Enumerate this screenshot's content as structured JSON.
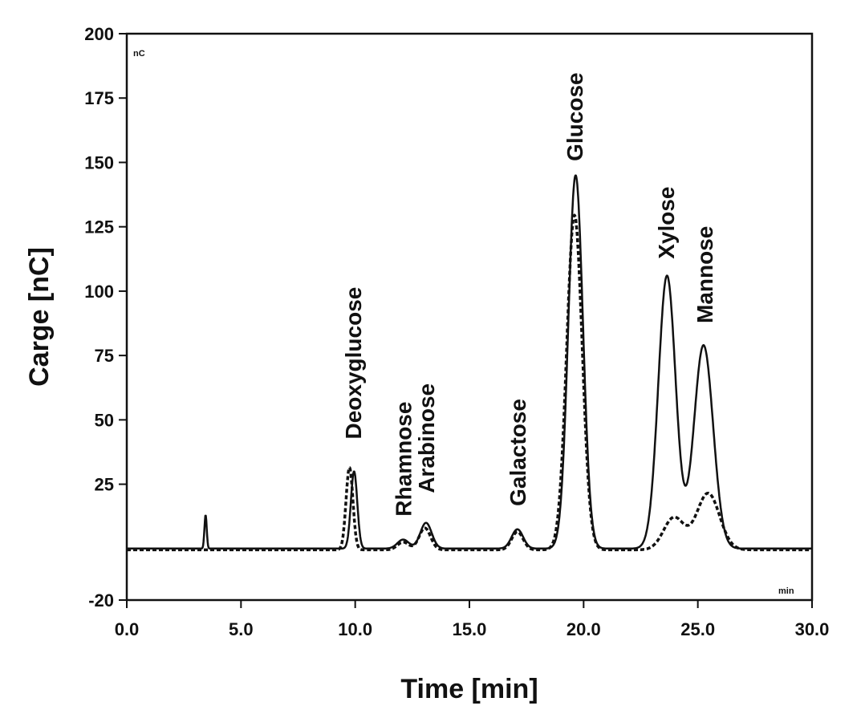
{
  "chart_data": {
    "type": "line",
    "xlabel": "Time [min]",
    "ylabel": "Carge [nC]",
    "corner_unit_y": "nC",
    "corner_unit_x": "min",
    "xlim": [
      0,
      30
    ],
    "ylim": [
      -20,
      200
    ],
    "x_ticks": [
      0,
      5,
      10,
      15,
      20,
      25,
      30
    ],
    "x_tick_labels": [
      "0.0",
      "5.0",
      "10.0",
      "15.0",
      "20.0",
      "25.0",
      "30.0"
    ],
    "y_ticks": [
      -20,
      25,
      50,
      75,
      100,
      125,
      150,
      175,
      200
    ],
    "y_tick_labels": [
      "-20",
      "25",
      "50",
      "75",
      "100",
      "125",
      "150",
      "175",
      "200"
    ],
    "grid": false,
    "peak_labels": [
      {
        "text": "Deoxyglucose",
        "x": 9.9,
        "y": 40
      },
      {
        "text": "Rhamnose",
        "x": 12.1,
        "y": 10
      },
      {
        "text": "Arabinose",
        "x": 13.1,
        "y": 19
      },
      {
        "text": "Galactose",
        "x": 17.1,
        "y": 14
      },
      {
        "text": "Glucose",
        "x": 19.6,
        "y": 148
      },
      {
        "text": "Xylose",
        "x": 23.6,
        "y": 110
      },
      {
        "text": "Mannose",
        "x": 25.3,
        "y": 85
      }
    ],
    "series": [
      {
        "style": "solid",
        "color": "#111111",
        "baseline_y": 0,
        "peaks": [
          {
            "x": 3.45,
            "height": 13,
            "sigma": 0.05
          },
          {
            "x": 9.95,
            "height": 30,
            "sigma": 0.14
          },
          {
            "x": 12.1,
            "height": 3.5,
            "sigma": 0.25
          },
          {
            "x": 13.1,
            "height": 10,
            "sigma": 0.25
          },
          {
            "x": 17.1,
            "height": 7.5,
            "sigma": 0.25
          },
          {
            "x": 19.65,
            "height": 145,
            "sigma": 0.32
          },
          {
            "x": 23.65,
            "height": 106,
            "sigma": 0.38
          },
          {
            "x": 25.25,
            "height": 79,
            "sigma": 0.42
          }
        ]
      },
      {
        "style": "dashed",
        "color": "#111111",
        "baseline_y": -0.5,
        "peaks": [
          {
            "x": 9.75,
            "height": 32,
            "sigma": 0.15
          },
          {
            "x": 12.1,
            "height": 3,
            "sigma": 0.25
          },
          {
            "x": 13.05,
            "height": 8.5,
            "sigma": 0.25
          },
          {
            "x": 17.1,
            "height": 7,
            "sigma": 0.25
          },
          {
            "x": 19.6,
            "height": 130,
            "sigma": 0.34
          },
          {
            "x": 23.95,
            "height": 12.5,
            "sigma": 0.45
          },
          {
            "x": 25.45,
            "height": 22,
            "sigma": 0.5
          }
        ]
      }
    ]
  }
}
